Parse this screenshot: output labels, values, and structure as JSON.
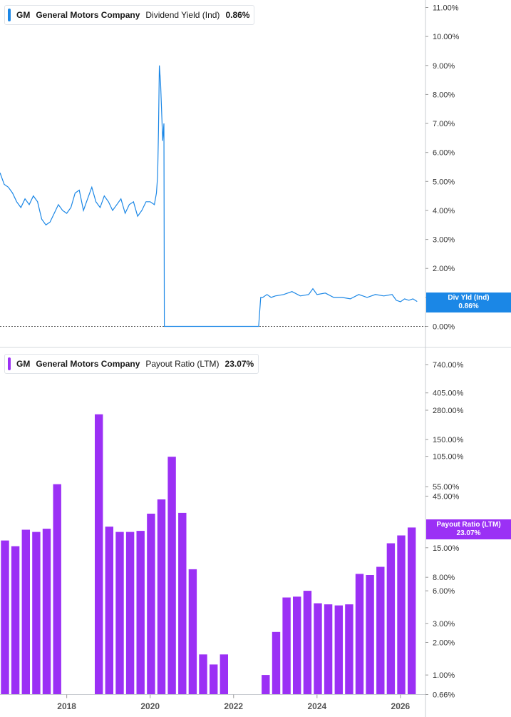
{
  "chart_data": [
    {
      "type": "line",
      "ticker": "GM",
      "company": "General Motors Company",
      "metric": "Dividend Yield (Ind)",
      "latest_value": "0.86%",
      "value_label": {
        "name": "Div Yld (Ind)",
        "value": "0.86%"
      },
      "color": "#1b87e6",
      "scale": "linear",
      "ylim": [
        0,
        11
      ],
      "y_tick_labels": [
        "11.00%",
        "10.00%",
        "9.00%",
        "8.00%",
        "7.00%",
        "6.00%",
        "5.00%",
        "4.00%",
        "3.00%",
        "2.00%",
        "1.00%",
        "0.00%"
      ],
      "y_ticks": [
        11,
        10,
        9,
        8,
        7,
        6,
        5,
        4,
        3,
        2,
        1,
        0
      ],
      "xlim": [
        2016.4,
        2026.6
      ],
      "series": [
        {
          "x": [
            2016.4,
            2016.5,
            2016.6,
            2016.7,
            2016.8,
            2016.9,
            2017.0,
            2017.1,
            2017.2,
            2017.3,
            2017.4,
            2017.5,
            2017.6,
            2017.7,
            2017.8,
            2017.9,
            2018.0,
            2018.1,
            2018.2,
            2018.3,
            2018.4,
            2018.5,
            2018.6,
            2018.7,
            2018.8,
            2018.9,
            2019.0,
            2019.1,
            2019.2,
            2019.3,
            2019.4,
            2019.5,
            2019.6,
            2019.7,
            2019.8,
            2019.9,
            2020.0,
            2020.1,
            2020.15,
            2020.18,
            2020.2,
            2020.22,
            2020.25,
            2020.28,
            2020.3,
            2020.33,
            2020.34,
            2022.6,
            2022.65,
            2022.7,
            2022.8,
            2022.9,
            2023.0,
            2023.2,
            2023.4,
            2023.6,
            2023.8,
            2023.9,
            2024.0,
            2024.2,
            2024.4,
            2024.6,
            2024.8,
            2025.0,
            2025.2,
            2025.4,
            2025.6,
            2025.8,
            2025.9,
            2026.0,
            2026.1,
            2026.2,
            2026.3,
            2026.4
          ],
          "y": [
            5.3,
            4.9,
            4.8,
            4.6,
            4.3,
            4.1,
            4.4,
            4.2,
            4.5,
            4.3,
            3.7,
            3.5,
            3.6,
            3.9,
            4.2,
            4.0,
            3.9,
            4.1,
            4.6,
            4.7,
            4.0,
            4.4,
            4.8,
            4.3,
            4.1,
            4.5,
            4.3,
            4.0,
            4.2,
            4.4,
            3.9,
            4.2,
            4.3,
            3.8,
            4.0,
            4.3,
            4.3,
            4.2,
            4.6,
            5.2,
            6.8,
            9.0,
            8.4,
            7.2,
            6.4,
            7.0,
            0.0,
            0.0,
            1.0,
            1.0,
            1.1,
            1.0,
            1.05,
            1.1,
            1.2,
            1.05,
            1.1,
            1.3,
            1.1,
            1.15,
            1.0,
            1.0,
            0.95,
            1.1,
            1.0,
            1.1,
            1.05,
            1.1,
            0.9,
            0.85,
            0.95,
            0.9,
            0.95,
            0.86
          ]
        }
      ]
    },
    {
      "type": "bar",
      "ticker": "GM",
      "company": "General Motors Company",
      "metric": "Payout Ratio (LTM)",
      "latest_value": "23.07%",
      "value_label": {
        "name": "Payout Ratio (LTM)",
        "value": "23.07%"
      },
      "color": "#9b30f5",
      "scale": "log",
      "ylim": [
        0.66,
        740
      ],
      "y_tick_labels": [
        "740.00%",
        "405.00%",
        "280.00%",
        "150.00%",
        "105.00%",
        "55.00%",
        "45.00%",
        "15.00%",
        "8.00%",
        "6.00%",
        "3.00%",
        "2.00%",
        "1.00%",
        "0.66%"
      ],
      "y_ticks": [
        740,
        405,
        280,
        150,
        105,
        55,
        45,
        15,
        8,
        6,
        3,
        2,
        1,
        0.66
      ],
      "xlim": [
        2016.4,
        2026.6
      ],
      "x_tick_labels": [
        "2018",
        "2020",
        "2022",
        "2024",
        "2026"
      ],
      "x_ticks": [
        2018,
        2020,
        2022,
        2024,
        2026
      ],
      "bars": {
        "x": [
          2016.52,
          2016.77,
          2017.02,
          2017.27,
          2017.52,
          2017.77,
          2018.02,
          2018.27,
          2018.52,
          2018.77,
          2019.02,
          2019.27,
          2019.52,
          2019.77,
          2020.02,
          2020.27,
          2020.52,
          2020.77,
          2021.02,
          2021.27,
          2021.52,
          2021.77,
          2022.02,
          2022.27,
          2022.52,
          2022.77,
          2023.02,
          2023.27,
          2023.52,
          2023.77,
          2024.02,
          2024.27,
          2024.52,
          2024.77,
          2025.02,
          2025.27,
          2025.52,
          2025.77,
          2026.02,
          2026.27
        ],
        "values": [
          17.5,
          15.5,
          22.0,
          21.0,
          22.5,
          58.0,
          null,
          null,
          null,
          257.0,
          23.5,
          21.0,
          21.0,
          21.5,
          31.0,
          42.0,
          104.0,
          31.5,
          9.5,
          1.55,
          1.25,
          1.55,
          null,
          null,
          null,
          1.0,
          2.5,
          5.2,
          5.3,
          6.0,
          4.6,
          4.5,
          4.4,
          4.5,
          8.6,
          8.4,
          10.0,
          16.5,
          19.5,
          23.07
        ]
      }
    }
  ]
}
